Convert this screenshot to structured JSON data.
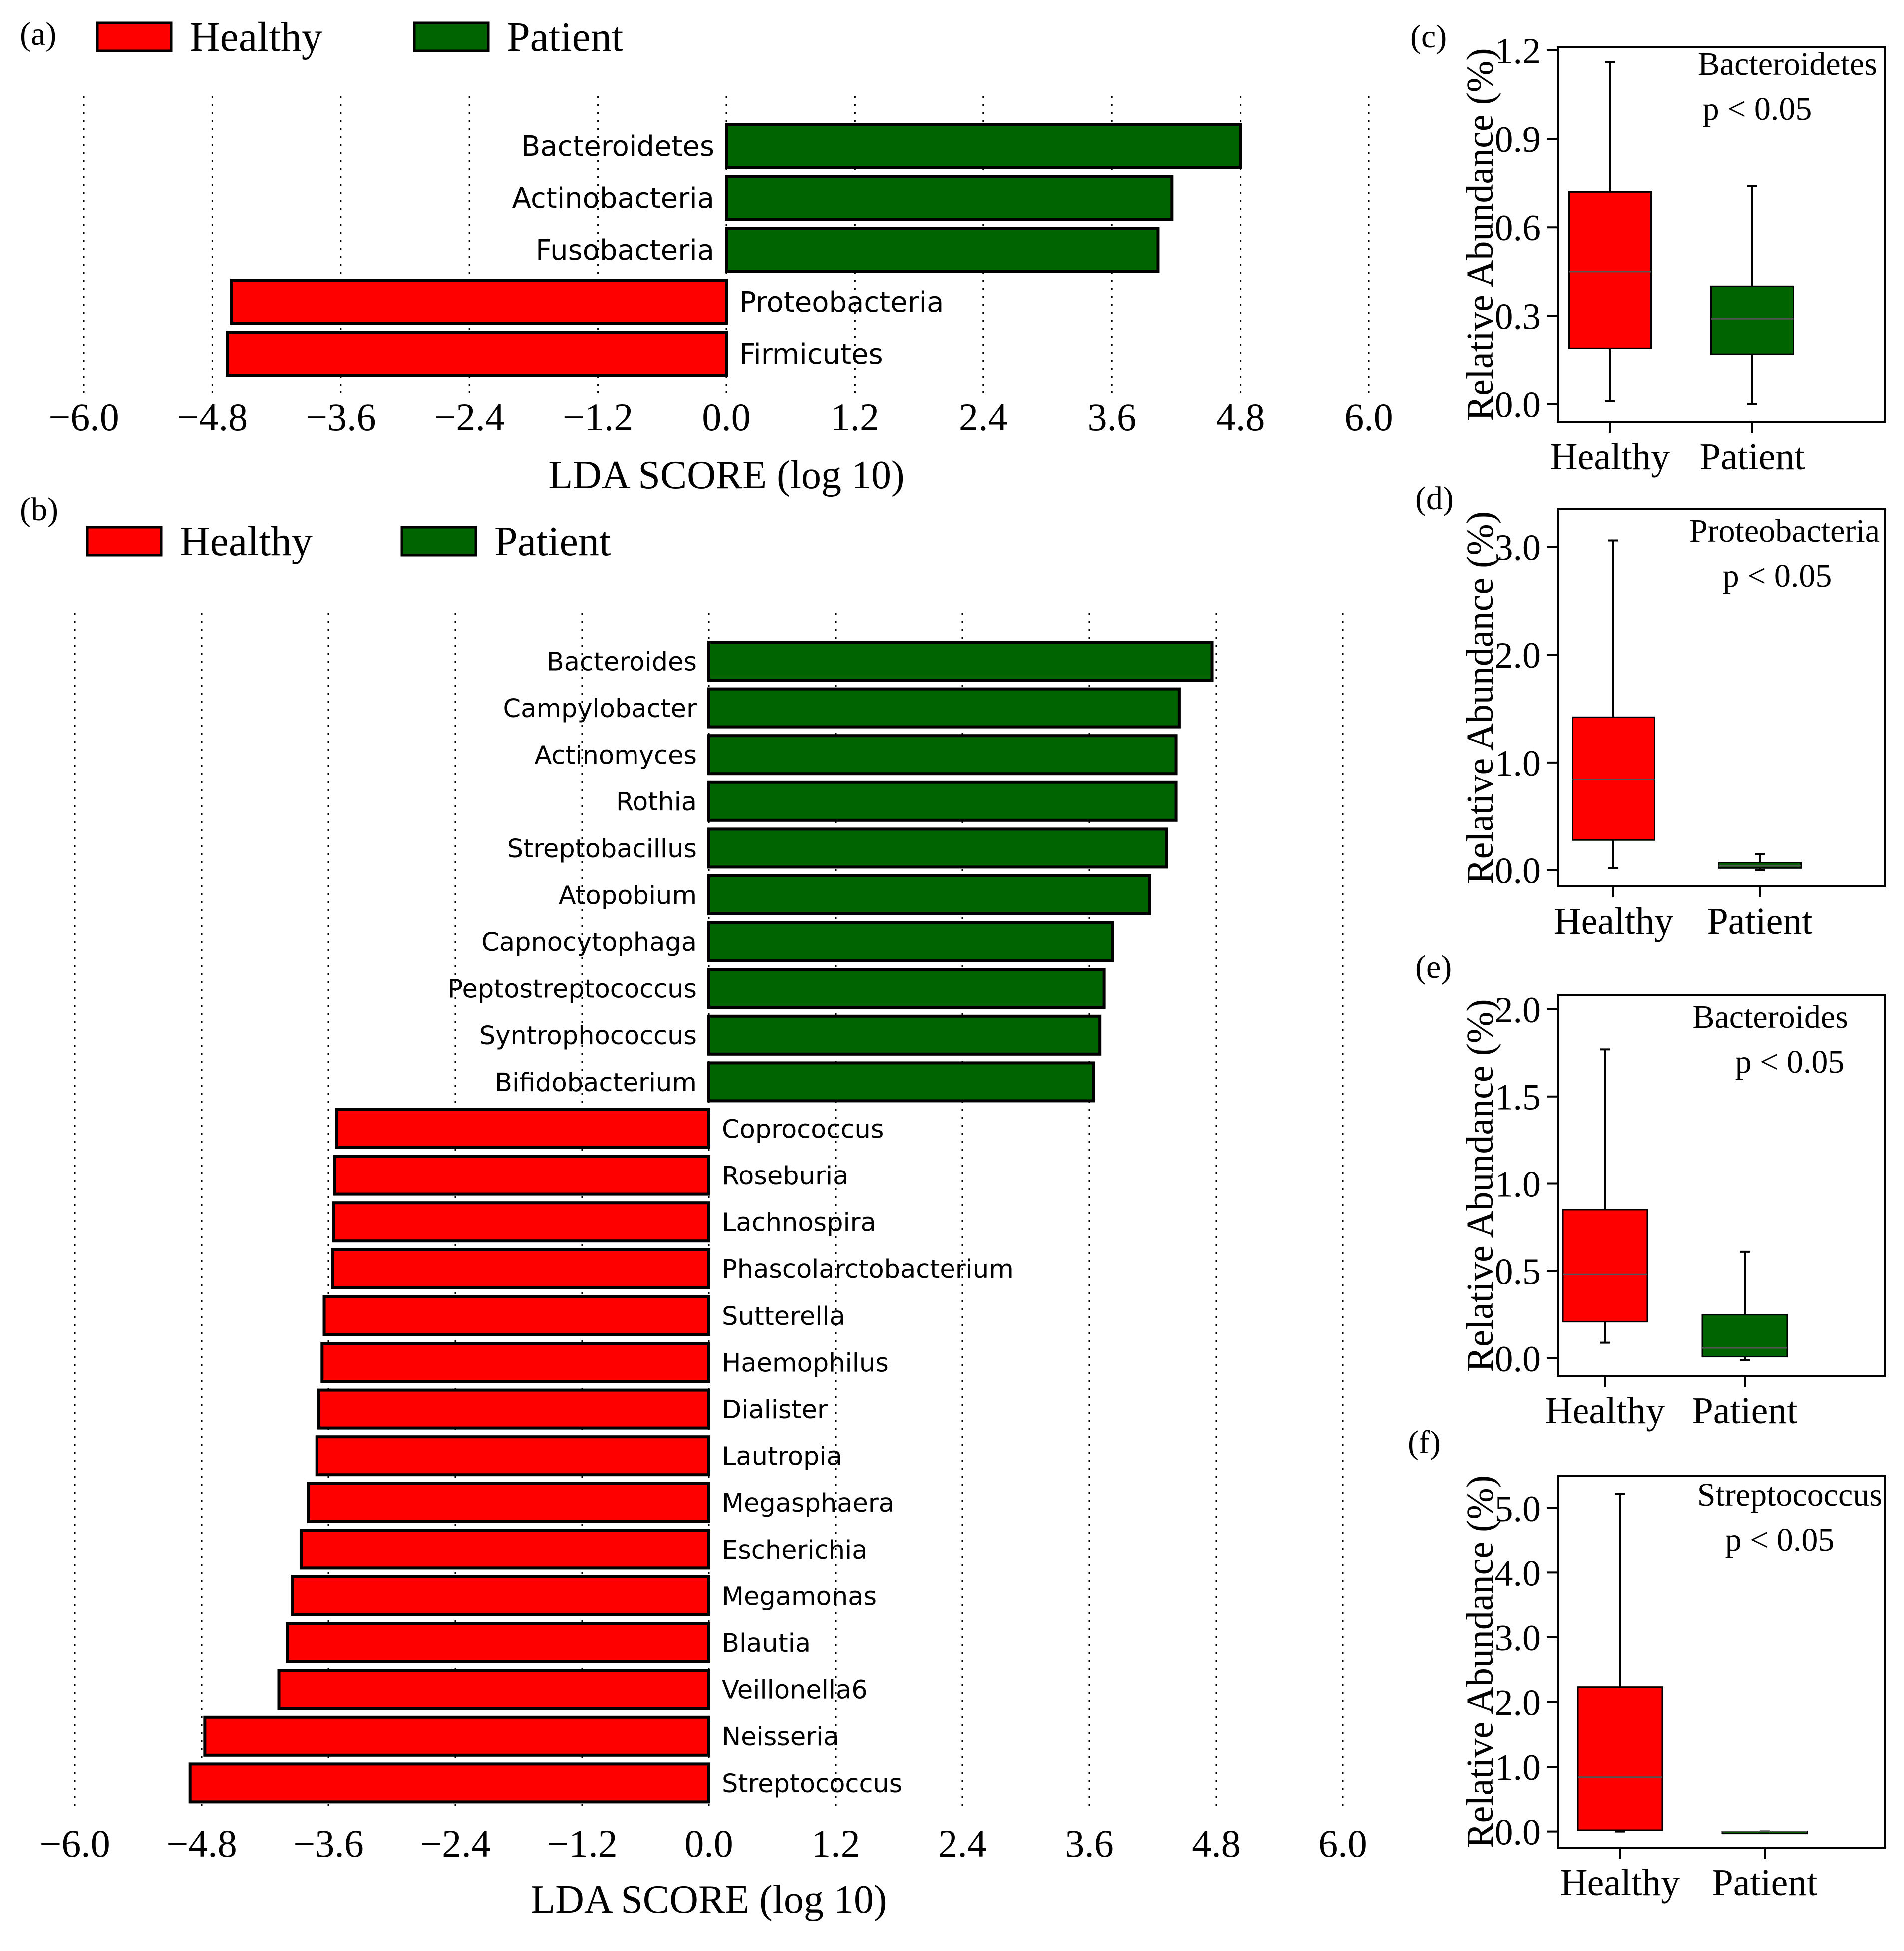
{
  "colors": {
    "healthy": "#ff0000",
    "patient": "#006400",
    "axis": "#000000",
    "grid": "#000000"
  },
  "chart_data": [
    {
      "id": "a",
      "panel_label": "(a)",
      "type": "bar",
      "orientation": "horizontal",
      "legend": [
        {
          "label": "Healthy",
          "color": "#ff0000"
        },
        {
          "label": "Patient",
          "color": "#006400"
        }
      ],
      "xlabel": "LDA SCORE (log 10)",
      "xlim": [
        -6.0,
        6.0
      ],
      "xticks": [
        -6.0,
        -4.8,
        -3.6,
        -2.4,
        -1.2,
        0.0,
        1.2,
        2.4,
        3.6,
        4.8,
        6.0
      ],
      "xtick_labels": [
        "−6.0",
        "−4.8",
        "−3.6",
        "−2.4",
        "−1.2",
        "0.0",
        "1.2",
        "2.4",
        "3.6",
        "4.8",
        "6.0"
      ],
      "categories": [
        "Bacteroidetes",
        "Actinobacteria",
        "Fusobacteria",
        "Proteobacteria",
        "Firmicutes"
      ],
      "values": [
        4.8,
        4.16,
        4.03,
        -4.62,
        -4.66
      ],
      "groups": [
        "Patient",
        "Patient",
        "Patient",
        "Healthy",
        "Healthy"
      ]
    },
    {
      "id": "b",
      "panel_label": "(b)",
      "type": "bar",
      "orientation": "horizontal",
      "legend": [
        {
          "label": "Healthy",
          "color": "#ff0000"
        },
        {
          "label": "Patient",
          "color": "#006400"
        }
      ],
      "xlabel": "LDA SCORE (log 10)",
      "xlim": [
        -6.0,
        6.0
      ],
      "xticks": [
        -6.0,
        -4.8,
        -3.6,
        -2.4,
        -1.2,
        0.0,
        1.2,
        2.4,
        3.6,
        4.8,
        6.0
      ],
      "xtick_labels": [
        "−6.0",
        "−4.8",
        "−3.6",
        "−2.4",
        "−1.2",
        "0.0",
        "1.2",
        "2.4",
        "3.6",
        "4.8",
        "6.0"
      ],
      "categories": [
        "Bacteroides",
        "Campylobacter",
        "Actinomyces",
        "Rothia",
        "Streptobacillus",
        "Atopobium",
        "Capnocytophaga",
        "Peptostreptococcus",
        "Syntrophococcus",
        "Bifidobacterium",
        "Coprococcus",
        "Roseburia",
        "Lachnospira",
        "Phascolarctobacterium",
        "Sutterella",
        "Haemophilus",
        "Dialister",
        "Lautropia",
        "Megasphaera",
        "Escherichia",
        "Megamonas",
        "Blautia",
        "Veillonella6",
        "Neisseria",
        "Streptococcus"
      ],
      "values": [
        4.76,
        4.45,
        4.42,
        4.42,
        4.33,
        4.17,
        3.82,
        3.74,
        3.7,
        3.64,
        -3.52,
        -3.54,
        -3.55,
        -3.56,
        -3.64,
        -3.66,
        -3.69,
        -3.71,
        -3.79,
        -3.86,
        -3.94,
        -3.99,
        -4.07,
        -4.77,
        -4.91
      ],
      "groups": [
        "Patient",
        "Patient",
        "Patient",
        "Patient",
        "Patient",
        "Patient",
        "Patient",
        "Patient",
        "Patient",
        "Patient",
        "Healthy",
        "Healthy",
        "Healthy",
        "Healthy",
        "Healthy",
        "Healthy",
        "Healthy",
        "Healthy",
        "Healthy",
        "Healthy",
        "Healthy",
        "Healthy",
        "Healthy",
        "Healthy",
        "Healthy"
      ]
    },
    {
      "id": "c",
      "panel_label": "(c)",
      "type": "box",
      "title": "Bacteroidetes",
      "annotation": "p < 0.05",
      "ylabel": "Relative Abundance (%)",
      "ylim": [
        -0.06,
        1.21
      ],
      "yticks": [
        0.0,
        0.3,
        0.6,
        0.9,
        1.2
      ],
      "ytick_labels": [
        "0.0",
        "0.3",
        "0.6",
        "0.9",
        "1.2"
      ],
      "categories": [
        "Healthy",
        "Patient"
      ],
      "boxes": [
        {
          "min": 0.01,
          "q1": 0.19,
          "median": 0.45,
          "q3": 0.72,
          "max": 1.16
        },
        {
          "min": 0.0,
          "q1": 0.17,
          "median": 0.29,
          "q3": 0.4,
          "max": 0.74
        }
      ]
    },
    {
      "id": "d",
      "panel_label": "(d)",
      "type": "box",
      "title": "Proteobacteria",
      "annotation": "p < 0.05",
      "ylabel": "Relative Abundance (%)",
      "ylim": [
        -0.15,
        3.35
      ],
      "yticks": [
        0.0,
        1.0,
        2.0,
        3.0
      ],
      "ytick_labels": [
        "0.0",
        "1.0",
        "2.0",
        "3.0"
      ],
      "categories": [
        "Healthy",
        "Patient"
      ],
      "boxes": [
        {
          "min": 0.02,
          "q1": 0.28,
          "median": 0.84,
          "q3": 1.42,
          "max": 3.06
        },
        {
          "min": 0.0,
          "q1": 0.02,
          "median": 0.04,
          "q3": 0.07,
          "max": 0.15
        }
      ]
    },
    {
      "id": "e",
      "panel_label": "(e)",
      "type": "box",
      "title": "Bacteroides",
      "annotation": "p < 0.05",
      "ylabel": "Relative Abundance (%)",
      "ylim": [
        -0.1,
        2.08
      ],
      "yticks": [
        0.0,
        0.5,
        1.0,
        1.5,
        2.0
      ],
      "ytick_labels": [
        "0.0",
        "0.5",
        "1.0",
        "1.5",
        "2.0"
      ],
      "categories": [
        "Healthy",
        "Patient"
      ],
      "boxes": [
        {
          "min": 0.09,
          "q1": 0.21,
          "median": 0.48,
          "q3": 0.85,
          "max": 1.77
        },
        {
          "min": -0.01,
          "q1": 0.01,
          "median": 0.06,
          "q3": 0.25,
          "max": 0.61
        }
      ]
    },
    {
      "id": "f",
      "panel_label": "(f)",
      "type": "box",
      "title": "Streptococcus",
      "annotation": "p < 0.05",
      "ylabel": "Relative Abundance (%)",
      "ylim": [
        -0.25,
        5.5
      ],
      "yticks": [
        0.0,
        1.0,
        2.0,
        3.0,
        4.0,
        5.0
      ],
      "ytick_labels": [
        "0.0",
        "1.0",
        "2.0",
        "3.0",
        "4.0",
        "5.0"
      ],
      "categories": [
        "Healthy",
        "Patient"
      ],
      "boxes": [
        {
          "min": 0.0,
          "q1": 0.02,
          "median": 0.84,
          "q3": 2.23,
          "max": 5.22
        },
        {
          "min": 0.0,
          "q1": 0.0,
          "median": 0.0,
          "q3": 0.0,
          "max": 0.0
        }
      ]
    }
  ]
}
